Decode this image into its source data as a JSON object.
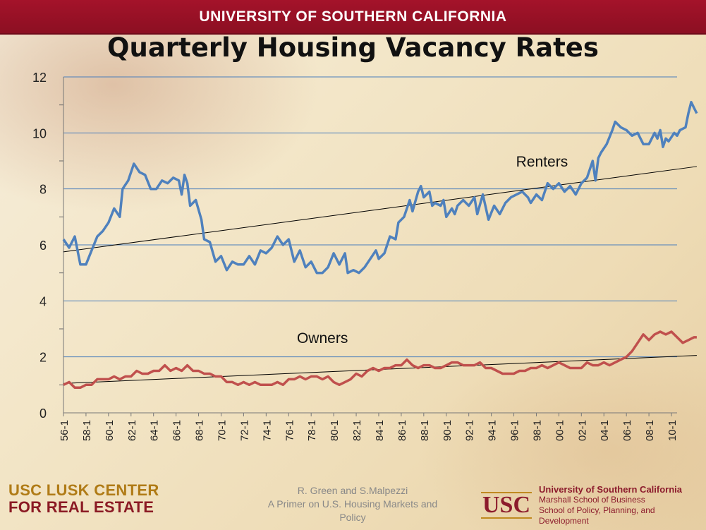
{
  "banner": {
    "text": "UNIVERSITY OF SOUTHERN CALIFORNIA"
  },
  "slide": {
    "title": "Quarterly Housing Vacancy Rates"
  },
  "footer": {
    "left_line1": "USC LUSK CENTER",
    "left_line2": "FOR REAL ESTATE",
    "center_line1": "R. Green and S.Malpezzi",
    "center_line2": "A Primer on U.S. Housing Markets and Policy",
    "logo_text": "USC",
    "right_line1": "University of Southern California",
    "right_line2": "Marshall School of Business",
    "right_line3": "School of Policy, Planning, and Development"
  },
  "colors": {
    "renters": "#4f81bd",
    "owners": "#c0504d",
    "trend": "#000000",
    "grid": "#4a7ebb"
  },
  "chart_data": {
    "type": "line",
    "title": "Quarterly Housing Vacancy Rates",
    "ylim": [
      0,
      12
    ],
    "yticks": [
      0,
      2,
      4,
      6,
      8,
      10,
      12
    ],
    "x_start_year": 1956,
    "x_quarters": 218,
    "xtick_labels": [
      "56-1",
      "58-1",
      "60-1",
      "62-1",
      "64-1",
      "66-1",
      "68-1",
      "70-1",
      "72-1",
      "74-1",
      "76-1",
      "78-1",
      "80-1",
      "82-1",
      "84-1",
      "86-1",
      "88-1",
      "90-1",
      "92-1",
      "94-1",
      "96-1",
      "98-1",
      "00-1",
      "02-1",
      "04-1",
      "06-1",
      "08-1",
      "10-1"
    ],
    "grid": true,
    "annotations": [
      {
        "text": "Renters",
        "near_year": 1998.5,
        "near_value": 8.8
      },
      {
        "text": "Owners",
        "near_year": 1979,
        "near_value": 2.5
      }
    ],
    "series": [
      {
        "name": "Renters",
        "keypoints": [
          [
            1956,
            6.2
          ],
          [
            1956.5,
            5.9
          ],
          [
            1957,
            6.3
          ],
          [
            1957.5,
            5.3
          ],
          [
            1958,
            5.3
          ],
          [
            1958.5,
            5.8
          ],
          [
            1959,
            6.3
          ],
          [
            1959.5,
            6.5
          ],
          [
            1960,
            6.8
          ],
          [
            1960.5,
            7.3
          ],
          [
            1961,
            7.0
          ],
          [
            1961.25,
            8.0
          ],
          [
            1961.75,
            8.3
          ],
          [
            1962.25,
            8.9
          ],
          [
            1962.75,
            8.6
          ],
          [
            1963.25,
            8.5
          ],
          [
            1963.75,
            8.0
          ],
          [
            1964.25,
            8.0
          ],
          [
            1964.75,
            8.3
          ],
          [
            1965.25,
            8.2
          ],
          [
            1965.75,
            8.4
          ],
          [
            1966.25,
            8.3
          ],
          [
            1966.5,
            7.8
          ],
          [
            1966.75,
            8.5
          ],
          [
            1967,
            8.2
          ],
          [
            1967.25,
            7.4
          ],
          [
            1967.75,
            7.6
          ],
          [
            1968.25,
            6.9
          ],
          [
            1968.5,
            6.2
          ],
          [
            1969,
            6.1
          ],
          [
            1969.5,
            5.4
          ],
          [
            1970,
            5.6
          ],
          [
            1970.5,
            5.1
          ],
          [
            1971,
            5.4
          ],
          [
            1971.5,
            5.3
          ],
          [
            1972,
            5.3
          ],
          [
            1972.5,
            5.6
          ],
          [
            1973,
            5.3
          ],
          [
            1973.5,
            5.8
          ],
          [
            1974,
            5.7
          ],
          [
            1974.5,
            5.9
          ],
          [
            1975,
            6.3
          ],
          [
            1975.5,
            6.0
          ],
          [
            1976,
            6.2
          ],
          [
            1976.5,
            5.4
          ],
          [
            1977,
            5.8
          ],
          [
            1977.5,
            5.2
          ],
          [
            1978,
            5.4
          ],
          [
            1978.5,
            5.0
          ],
          [
            1979,
            5.0
          ],
          [
            1979.5,
            5.2
          ],
          [
            1980,
            5.7
          ],
          [
            1980.5,
            5.3
          ],
          [
            1981,
            5.7
          ],
          [
            1981.25,
            5.0
          ],
          [
            1981.75,
            5.1
          ],
          [
            1982.25,
            5.0
          ],
          [
            1982.75,
            5.2
          ],
          [
            1983.25,
            5.5
          ],
          [
            1983.75,
            5.8
          ],
          [
            1984,
            5.5
          ],
          [
            1984.5,
            5.7
          ],
          [
            1985,
            6.3
          ],
          [
            1985.5,
            6.2
          ],
          [
            1985.75,
            6.8
          ],
          [
            1986.25,
            7.0
          ],
          [
            1986.75,
            7.6
          ],
          [
            1987,
            7.2
          ],
          [
            1987.5,
            7.9
          ],
          [
            1987.75,
            8.1
          ],
          [
            1988,
            7.7
          ],
          [
            1988.5,
            7.9
          ],
          [
            1988.75,
            7.4
          ],
          [
            1989,
            7.5
          ],
          [
            1989.5,
            7.4
          ],
          [
            1989.75,
            7.6
          ],
          [
            1990,
            7.0
          ],
          [
            1990.5,
            7.3
          ],
          [
            1990.75,
            7.1
          ],
          [
            1991,
            7.4
          ],
          [
            1991.5,
            7.6
          ],
          [
            1992,
            7.4
          ],
          [
            1992.5,
            7.7
          ],
          [
            1992.75,
            7.1
          ],
          [
            1993.25,
            7.8
          ],
          [
            1993.75,
            6.9
          ],
          [
            1994.25,
            7.4
          ],
          [
            1994.75,
            7.1
          ],
          [
            1995.25,
            7.5
          ],
          [
            1995.75,
            7.7
          ],
          [
            1996.25,
            7.8
          ],
          [
            1996.75,
            7.9
          ],
          [
            1997.25,
            7.7
          ],
          [
            1997.5,
            7.5
          ],
          [
            1998,
            7.8
          ],
          [
            1998.5,
            7.6
          ],
          [
            1999,
            8.2
          ],
          [
            1999.5,
            8.0
          ],
          [
            2000,
            8.2
          ],
          [
            2000.5,
            7.9
          ],
          [
            2001,
            8.1
          ],
          [
            2001.5,
            7.8
          ],
          [
            2002,
            8.2
          ],
          [
            2002.5,
            8.4
          ],
          [
            2003,
            9.0
          ],
          [
            2003.25,
            8.3
          ],
          [
            2003.5,
            9.1
          ],
          [
            2003.75,
            9.3
          ],
          [
            2004.25,
            9.6
          ],
          [
            2004.75,
            10.1
          ],
          [
            2005,
            10.4
          ],
          [
            2005.5,
            10.2
          ],
          [
            2006,
            10.1
          ],
          [
            2006.5,
            9.9
          ],
          [
            2007,
            10.0
          ],
          [
            2007.5,
            9.6
          ],
          [
            2008,
            9.6
          ],
          [
            2008.5,
            10.0
          ],
          [
            2008.75,
            9.8
          ],
          [
            2009,
            10.1
          ],
          [
            2009.25,
            9.5
          ],
          [
            2009.5,
            9.8
          ],
          [
            2009.75,
            9.7
          ],
          [
            2010.25,
            10.0
          ],
          [
            2010.5,
            9.9
          ],
          [
            2010.75,
            10.1
          ],
          [
            2011.25,
            10.2
          ],
          [
            2011.5,
            10.7
          ],
          [
            2011.75,
            11.1
          ],
          [
            2012,
            10.9
          ],
          [
            2012.25,
            10.7
          ]
        ],
        "trend": [
          [
            1956,
            5.75
          ],
          [
            2012.25,
            8.8
          ]
        ]
      },
      {
        "name": "Owners",
        "keypoints": [
          [
            1956,
            1.0
          ],
          [
            1956.5,
            1.1
          ],
          [
            1957,
            0.9
          ],
          [
            1957.5,
            0.9
          ],
          [
            1958,
            1.0
          ],
          [
            1958.5,
            1.0
          ],
          [
            1959,
            1.2
          ],
          [
            1960,
            1.2
          ],
          [
            1960.5,
            1.3
          ],
          [
            1961,
            1.2
          ],
          [
            1961.5,
            1.3
          ],
          [
            1962,
            1.3
          ],
          [
            1962.5,
            1.5
          ],
          [
            1963,
            1.4
          ],
          [
            1963.5,
            1.4
          ],
          [
            1964,
            1.5
          ],
          [
            1964.5,
            1.5
          ],
          [
            1965,
            1.7
          ],
          [
            1965.5,
            1.5
          ],
          [
            1966,
            1.6
          ],
          [
            1966.5,
            1.5
          ],
          [
            1967,
            1.7
          ],
          [
            1967.5,
            1.5
          ],
          [
            1968,
            1.5
          ],
          [
            1968.5,
            1.4
          ],
          [
            1969,
            1.4
          ],
          [
            1969.5,
            1.3
          ],
          [
            1970,
            1.3
          ],
          [
            1970.5,
            1.1
          ],
          [
            1971,
            1.1
          ],
          [
            1971.5,
            1.0
          ],
          [
            1972,
            1.1
          ],
          [
            1972.5,
            1.0
          ],
          [
            1973,
            1.1
          ],
          [
            1973.5,
            1.0
          ],
          [
            1974,
            1.0
          ],
          [
            1974.5,
            1.0
          ],
          [
            1975,
            1.1
          ],
          [
            1975.5,
            1.0
          ],
          [
            1976,
            1.2
          ],
          [
            1976.5,
            1.2
          ],
          [
            1977,
            1.3
          ],
          [
            1977.5,
            1.2
          ],
          [
            1978,
            1.3
          ],
          [
            1978.5,
            1.3
          ],
          [
            1979,
            1.2
          ],
          [
            1979.5,
            1.3
          ],
          [
            1980,
            1.1
          ],
          [
            1980.5,
            1.0
          ],
          [
            1981,
            1.1
          ],
          [
            1981.5,
            1.2
          ],
          [
            1982,
            1.4
          ],
          [
            1982.5,
            1.3
          ],
          [
            1983,
            1.5
          ],
          [
            1983.5,
            1.6
          ],
          [
            1984,
            1.5
          ],
          [
            1984.5,
            1.6
          ],
          [
            1985,
            1.6
          ],
          [
            1985.5,
            1.7
          ],
          [
            1986,
            1.7
          ],
          [
            1986.5,
            1.9
          ],
          [
            1987,
            1.7
          ],
          [
            1987.5,
            1.6
          ],
          [
            1988,
            1.7
          ],
          [
            1988.5,
            1.7
          ],
          [
            1989,
            1.6
          ],
          [
            1989.5,
            1.6
          ],
          [
            1990,
            1.7
          ],
          [
            1990.5,
            1.8
          ],
          [
            1991,
            1.8
          ],
          [
            1991.5,
            1.7
          ],
          [
            1992,
            1.7
          ],
          [
            1992.5,
            1.7
          ],
          [
            1993,
            1.8
          ],
          [
            1993.5,
            1.6
          ],
          [
            1994,
            1.6
          ],
          [
            1994.5,
            1.5
          ],
          [
            1995,
            1.4
          ],
          [
            1995.5,
            1.4
          ],
          [
            1996,
            1.4
          ],
          [
            1996.5,
            1.5
          ],
          [
            1997,
            1.5
          ],
          [
            1997.5,
            1.6
          ],
          [
            1998,
            1.6
          ],
          [
            1998.5,
            1.7
          ],
          [
            1999,
            1.6
          ],
          [
            1999.5,
            1.7
          ],
          [
            2000,
            1.8
          ],
          [
            2000.5,
            1.7
          ],
          [
            2001,
            1.6
          ],
          [
            2001.5,
            1.6
          ],
          [
            2002,
            1.6
          ],
          [
            2002.5,
            1.8
          ],
          [
            2003,
            1.7
          ],
          [
            2003.5,
            1.7
          ],
          [
            2004,
            1.8
          ],
          [
            2004.5,
            1.7
          ],
          [
            2005,
            1.8
          ],
          [
            2005.5,
            1.9
          ],
          [
            2006,
            2.0
          ],
          [
            2006.5,
            2.2
          ],
          [
            2007,
            2.5
          ],
          [
            2007.5,
            2.8
          ],
          [
            2008,
            2.6
          ],
          [
            2008.5,
            2.8
          ],
          [
            2009,
            2.9
          ],
          [
            2009.5,
            2.8
          ],
          [
            2010,
            2.9
          ],
          [
            2010.5,
            2.7
          ],
          [
            2011,
            2.5
          ],
          [
            2011.5,
            2.6
          ],
          [
            2012,
            2.7
          ],
          [
            2012.25,
            2.7
          ]
        ],
        "trend": [
          [
            1956,
            1.05
          ],
          [
            2012.25,
            2.05
          ]
        ]
      }
    ]
  }
}
